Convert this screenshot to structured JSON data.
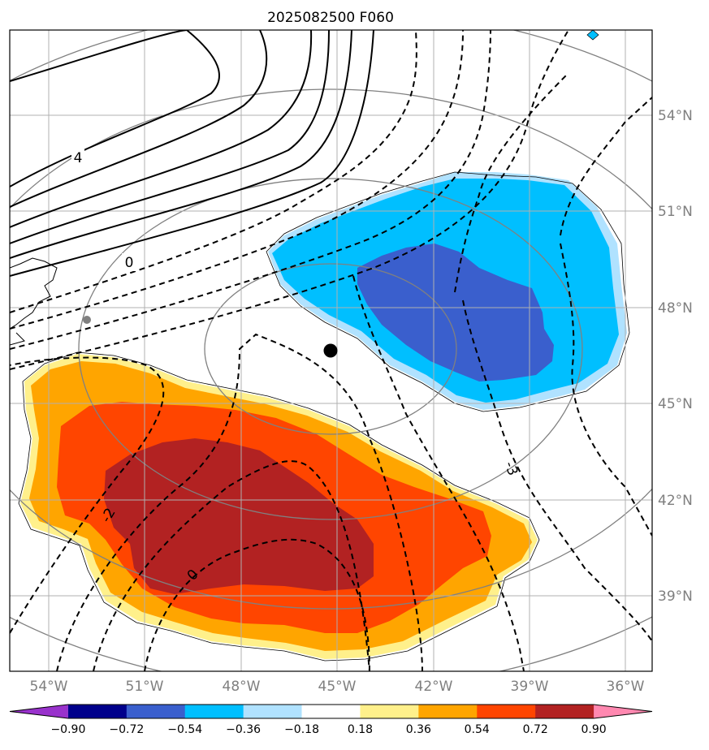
{
  "chart_data": {
    "type": "contour-map",
    "title": "2025082500 F060",
    "lon_ticks": [
      -54,
      -51,
      -48,
      -45,
      -42,
      -39,
      -36
    ],
    "lon_labels": [
      "54°W",
      "51°W",
      "48°W",
      "45°W",
      "42°W",
      "39°W",
      "36°W"
    ],
    "lat_ticks": [
      39,
      42,
      45,
      48,
      51,
      54
    ],
    "lat_labels": [
      "39°N",
      "42°N",
      "45°N",
      "48°N",
      "51°N",
      "54°N"
    ],
    "lon_range": [
      -55.5,
      -35.5
    ],
    "lat_range": [
      37,
      57
    ],
    "center_point": {
      "lon": -45,
      "lat": 46.6
    },
    "colorbar": {
      "levels": [
        -0.9,
        -0.72,
        -0.54,
        -0.36,
        -0.18,
        0.18,
        0.36,
        0.54,
        0.72,
        0.9
      ],
      "level_labels": [
        "−0.90",
        "−0.72",
        "−0.54",
        "−0.36",
        "−0.18",
        "0.18",
        "0.36",
        "0.54",
        "0.72",
        "0.90"
      ],
      "colors": [
        "#9932cc",
        "#00008b",
        "#3a5fcd",
        "#00bfff",
        "#b0e2ff",
        "#ffffff",
        "#fff08b",
        "#ffa500",
        "#ff4500",
        "#b22222",
        "#ff88b0"
      ],
      "extend": "both"
    },
    "shaded_regions": [
      {
        "name": "negative-anomaly",
        "levels": [
          -0.18,
          -0.36,
          -0.54
        ],
        "center": {
          "lon": -41.5,
          "lat": 48.5
        }
      },
      {
        "name": "positive-anomaly",
        "levels": [
          0.18,
          0.36,
          0.54,
          0.72
        ],
        "center": {
          "lon": -47.5,
          "lat": 41.5
        }
      }
    ],
    "contour_labels": [
      {
        "text": "4",
        "lon": -52.8,
        "lat": 53.2
      },
      {
        "text": "0",
        "lon": -48.8,
        "lat": 49.4
      },
      {
        "text": "-2",
        "lon": -51.2,
        "lat": 41.5
      },
      {
        "text": "0",
        "lon": -47.5,
        "lat": 39.6
      },
      {
        "text": "-3",
        "lon": -39.5,
        "lat": 43.0
      }
    ]
  }
}
